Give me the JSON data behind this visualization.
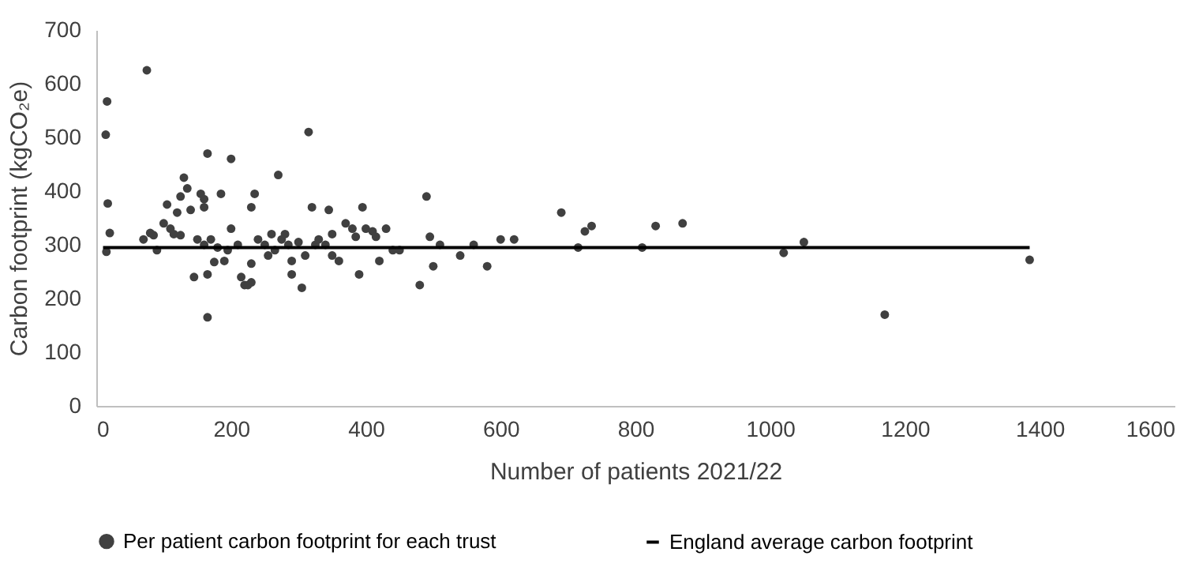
{
  "chart_data": {
    "type": "scatter",
    "xlabel": "Number of patients 2021/22",
    "ylabel": "Carbon footprint (kgCO₂e)",
    "xlim": [
      0,
      1600
    ],
    "xticks": [
      0,
      200,
      400,
      600,
      800,
      1000,
      1200,
      1400,
      1600
    ],
    "ylim": [
      0,
      700
    ],
    "yticks": [
      0,
      100,
      200,
      300,
      400,
      500,
      600,
      700
    ],
    "legend": "bottom",
    "series": [
      {
        "name": "Per patient carbon footprint for each trust",
        "marker": "circle",
        "color": "#404040",
        "x": [
          16,
          14,
          17,
          15,
          20,
          75,
          70,
          80,
          85,
          90,
          100,
          105,
          110,
          115,
          120,
          125,
          130,
          135,
          140,
          125,
          145,
          150,
          155,
          160,
          165,
          160,
          160,
          170,
          165,
          175,
          165,
          180,
          185,
          190,
          195,
          200,
          200,
          210,
          215,
          220,
          225,
          230,
          230,
          235,
          230,
          240,
          250,
          255,
          260,
          265,
          270,
          275,
          280,
          285,
          290,
          290,
          300,
          305,
          310,
          315,
          320,
          325,
          330,
          340,
          345,
          350,
          350,
          360,
          370,
          380,
          385,
          390,
          395,
          400,
          410,
          415,
          420,
          430,
          440,
          450,
          480,
          490,
          495,
          500,
          510,
          540,
          560,
          580,
          600,
          620,
          690,
          715,
          725,
          735,
          810,
          830,
          870,
          1020,
          1050,
          1170,
          1385
        ],
        "values": [
          567,
          505,
          377,
          287,
          322,
          625,
          310,
          322,
          318,
          290,
          340,
          375,
          330,
          320,
          360,
          390,
          425,
          405,
          365,
          318,
          240,
          310,
          395,
          385,
          470,
          370,
          300,
          310,
          165,
          268,
          245,
          295,
          395,
          270,
          290,
          330,
          460,
          300,
          240,
          225,
          225,
          230,
          370,
          395,
          265,
          310,
          300,
          280,
          320,
          290,
          430,
          310,
          320,
          300,
          270,
          245,
          305,
          220,
          280,
          510,
          370,
          300,
          310,
          300,
          365,
          320,
          280,
          270,
          340,
          330,
          315,
          245,
          370,
          330,
          325,
          315,
          270,
          330,
          290,
          290,
          225,
          390,
          315,
          260,
          300,
          280,
          300,
          260,
          310,
          310,
          360,
          295,
          325,
          335,
          295,
          335,
          340,
          285,
          305,
          170,
          272
        ]
      },
      {
        "name": "England average carbon footprint",
        "type": "line",
        "color": "#000000",
        "x": [
          10,
          1385
        ],
        "values": [
          295,
          295
        ]
      }
    ]
  }
}
